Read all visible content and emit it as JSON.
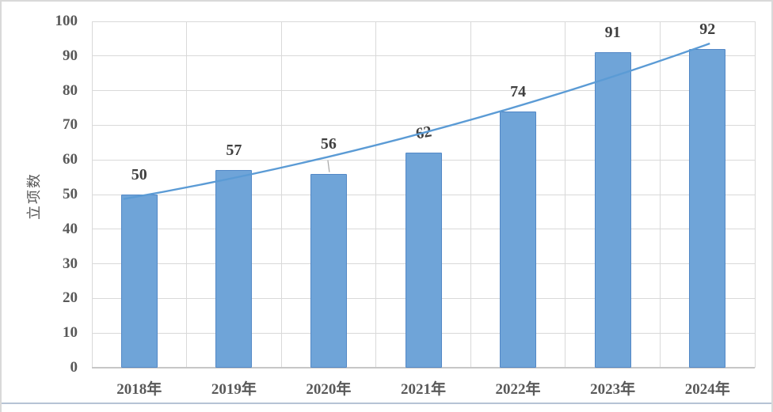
{
  "chart_data": {
    "type": "bar",
    "title": "",
    "ylabel": "立项数",
    "xlabel": "",
    "categories": [
      "2018年",
      "2019年",
      "2020年",
      "2021年",
      "2022年",
      "2023年",
      "2024年"
    ],
    "values": [
      50,
      57,
      56,
      62,
      74,
      91,
      92
    ],
    "data_labels_shown": true,
    "ylim": [
      0,
      100
    ],
    "yticks": [
      0,
      10,
      20,
      30,
      40,
      50,
      60,
      70,
      80,
      90,
      100
    ],
    "grid": true,
    "legend": false,
    "trendline": {
      "shape": "smooth-rising-curve",
      "start_value": 48.7,
      "mid_value": 67.3,
      "end_value": 93.6
    }
  },
  "value_label_overrides": {
    "2": {
      "dy": -13,
      "leader": true
    },
    "3": {
      "rotate_deg": -10
    }
  },
  "colors": {
    "background": "#FFFFFF",
    "bar_fill": "#6FA4D8",
    "bar_border": "#5388C6",
    "trendline": "#5B9BD5",
    "gridline": "#D9D9D9",
    "axis_line": "#C6C6C6",
    "tick_text": "#595959",
    "value_label_text": "#3F3F3F",
    "leader_line": "#A6A6A6",
    "frame_border": "#D9D9D9",
    "bottom_rule": "#B6C3D5"
  }
}
